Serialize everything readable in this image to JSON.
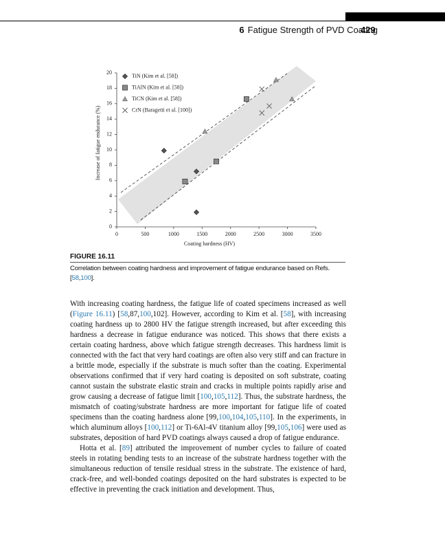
{
  "header": {
    "chapter": "6",
    "title": "Fatigue Strength of PVD Coating",
    "page": "429"
  },
  "chart_data": {
    "type": "scatter",
    "xlabel": "Coating hardness (HV)",
    "ylabel": "Increase of fatigue endurance (%)",
    "xlim": [
      0,
      3500
    ],
    "ylim": [
      0,
      20
    ],
    "xticks": [
      0,
      500,
      1000,
      1500,
      2000,
      2500,
      3000,
      3500
    ],
    "yticks": [
      0,
      2,
      4,
      6,
      8,
      10,
      12,
      14,
      16,
      18,
      20
    ],
    "legend": "upper left",
    "series": [
      {
        "name": "TiN (Kim et al. [58])",
        "marker": "diamond",
        "color": "#555555",
        "x": [
          830,
          1400,
          1400
        ],
        "values": [
          9.9,
          7.2,
          1.9
        ]
      },
      {
        "name": "TiAlN (Kim et al. [58])",
        "marker": "square",
        "color": "#8a8a8a",
        "x": [
          1200,
          1750,
          2280
        ],
        "values": [
          5.9,
          8.5,
          16.6
        ]
      },
      {
        "name": "TiCN (Kim et al. [58])",
        "marker": "triangle",
        "color": "#9a9a9a",
        "x": [
          1550,
          2800,
          3080
        ],
        "values": [
          12.4,
          19.1,
          16.6
        ]
      },
      {
        "name": "CrN (Baragetti et al. [100])",
        "marker": "x",
        "color": "#666666",
        "x": [
          2550,
          2550,
          2680
        ],
        "values": [
          17.9,
          14.8,
          15.7
        ]
      }
    ]
  },
  "figure": {
    "label": "FIGURE 16.11",
    "caption": [
      "Correlation between coating hardness and improvement of fatigue endurance based on Refs. [",
      {
        "ref": "58"
      },
      ",",
      {
        "ref": "100"
      },
      "]."
    ]
  },
  "body": {
    "paragraphs": [
      [
        "With increasing coating hardness, the fatigue life of coated specimens increased as well (",
        {
          "ref": "Figure 16.11"
        },
        ") [",
        {
          "ref": "58"
        },
        ",87,",
        {
          "ref": "100"
        },
        ",102]. However, according to Kim et al. [",
        {
          "ref": "58"
        },
        "], with increasing coating hardness up to 2800 HV the fatigue strength increased, but after exceeding this hardness a decrease in fatigue endurance was noticed. This shows that there exists a certain coating hardness, above which fatigue strength decreases. This hardness limit is connected with the fact that very hard coatings are often also very stiff and can fracture in a brittle mode, especially if the substrate is much softer than the coating. Experimental observations confirmed that if very hard coating is deposited on soft substrate, coating cannot sustain the substrate elastic strain and cracks in multiple points rapidly arise and grow causing a decrease of fatigue limit [",
        {
          "ref": "100"
        },
        ",",
        {
          "ref": "105"
        },
        ",",
        {
          "ref": "112"
        },
        "]. Thus, the substrate hardness, the mismatch of coating/substrate hardness are more important for fatigue life of coated specimens than the coating hardness alone [99,",
        {
          "ref": "100"
        },
        ",",
        {
          "ref": "104"
        },
        ",",
        {
          "ref": "105"
        },
        ",",
        {
          "ref": "110"
        },
        "]. In the experiments, in which aluminum alloys [",
        {
          "ref": "100"
        },
        ",",
        {
          "ref": "112"
        },
        "] or Ti-6Al-4V titanium alloy [99,",
        {
          "ref": "105"
        },
        ",",
        {
          "ref": "106"
        },
        "] were used as substrates, deposition of hard PVD coatings always caused a drop of fatigue endurance."
      ],
      [
        "Hotta et al. [",
        {
          "ref": "89"
        },
        "] attributed the improvement of number cycles to failure of coated steels in rotating bending tests to an increase of the substrate hardness together with the simultaneous reduction of tensile residual stress in the substrate. The existence of hard, crack-free, and well-bonded coatings deposited on the hard substrates is expected to be effective in preventing the crack initiation and development. Thus,"
      ]
    ]
  }
}
